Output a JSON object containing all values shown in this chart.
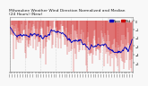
{
  "title_line1": "Milwaukee Weather Wind Direction",
  "title_line2": "Normalized and Median",
  "title_line3": "(24 Hours) (New)",
  "background_color": "#f8f8f8",
  "plot_bg_color": "#f8f8f8",
  "bar_color": "#cc0000",
  "median_color": "#0000bb",
  "legend_color1": "#0000bb",
  "legend_color2": "#cc0000",
  "legend_label1": "Norm",
  "legend_label2": "Med",
  "num_bars": 288,
  "seed": 99,
  "ylim_min": -6,
  "ylim_max": 0.5,
  "ytick_values": [
    0,
    -1,
    -2,
    -3,
    -4,
    -5
  ],
  "title_fontsize": 3.2,
  "tick_fontsize": 2.2,
  "grid_color": "#bbbbbb",
  "grid_style": ":"
}
